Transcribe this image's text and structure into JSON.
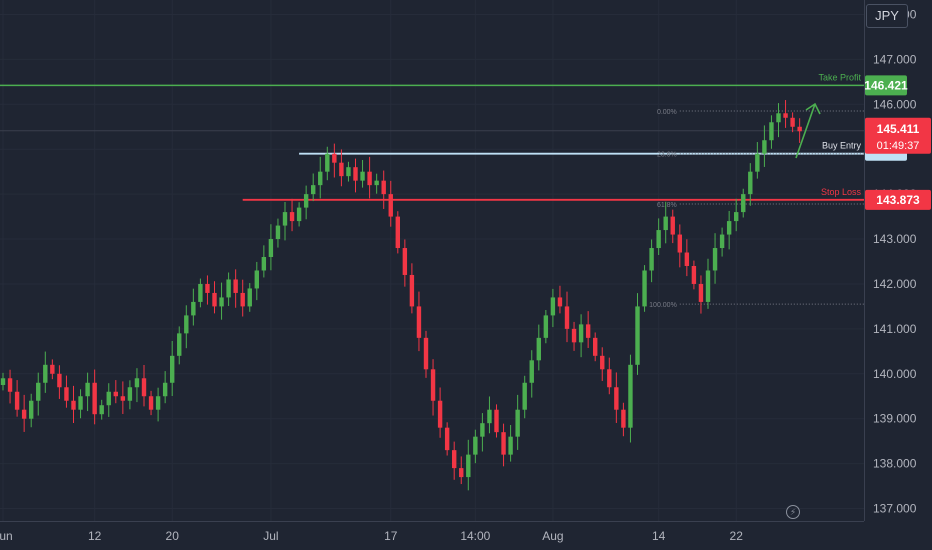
{
  "currency": "JPY",
  "chart_data": {
    "type": "candlestick",
    "y_axis": {
      "ticks": [
        "148.000",
        "147.000",
        "146.000",
        "145.000",
        "144.000",
        "143.000",
        "142.000",
        "141.000",
        "140.000",
        "139.000",
        "138.000",
        "137.000"
      ],
      "tick_values": [
        148,
        147,
        146,
        145,
        144,
        143,
        142,
        141,
        140,
        139,
        138,
        137
      ],
      "range": [
        136.7,
        148.3
      ]
    },
    "x_axis": {
      "ticks": [
        "Jun",
        "12",
        "20",
        "Jul",
        "17",
        "14:00",
        "Aug",
        "14",
        "22"
      ],
      "tick_index": [
        0,
        13,
        24,
        38,
        55,
        67,
        78,
        93,
        104
      ]
    },
    "levels": {
      "take_profit": {
        "label": "Take Profit",
        "value": 146.421,
        "value_text": "146.421",
        "color": "#4caf50"
      },
      "buy_entry": {
        "label": "Buy Entry",
        "value": 144.9,
        "color": "#bfe1f5"
      },
      "stop_loss": {
        "label": "Stop Loss",
        "value": 143.873,
        "value_text": "143.873",
        "color": "#f23645"
      }
    },
    "current_price": {
      "value": 145.411,
      "value_text": "145.411",
      "countdown": "01:49:37",
      "color": "#f23645"
    },
    "fib_levels": [
      {
        "label": "0.00%",
        "value": 145.85
      },
      {
        "label": "23.6%",
        "value": 144.9
      },
      {
        "label": "61.8%",
        "value": 143.78
      },
      {
        "label": "100.00%",
        "value": 141.55
      }
    ],
    "candle_colors": {
      "up": "#4caf50",
      "down": "#f23645"
    },
    "closes": [
      139.9,
      139.6,
      139.2,
      139.0,
      139.4,
      139.8,
      140.2,
      140.0,
      139.7,
      139.4,
      139.2,
      139.5,
      139.8,
      139.1,
      139.3,
      139.6,
      139.5,
      139.4,
      139.7,
      139.9,
      139.5,
      139.2,
      139.5,
      139.8,
      140.4,
      140.9,
      141.3,
      141.6,
      142.0,
      141.8,
      141.5,
      141.7,
      142.1,
      141.8,
      141.5,
      141.9,
      142.3,
      142.6,
      143.0,
      143.3,
      143.6,
      143.4,
      143.7,
      144.0,
      144.2,
      144.5,
      144.9,
      144.7,
      144.4,
      144.6,
      144.3,
      144.5,
      144.2,
      144.3,
      144.0,
      143.5,
      142.8,
      142.2,
      141.5,
      140.8,
      140.1,
      139.4,
      138.8,
      138.3,
      137.9,
      137.7,
      138.2,
      138.6,
      138.9,
      139.2,
      138.7,
      138.2,
      138.6,
      139.2,
      139.8,
      140.3,
      140.8,
      141.3,
      141.7,
      141.5,
      141.0,
      140.7,
      141.1,
      140.8,
      140.4,
      140.1,
      139.7,
      139.2,
      138.8,
      140.2,
      141.5,
      142.3,
      142.8,
      143.2,
      143.5,
      143.1,
      142.7,
      142.4,
      142.0,
      141.6,
      142.3,
      142.8,
      143.1,
      143.4,
      143.6,
      144.0,
      144.5,
      144.9,
      145.2,
      145.6,
      145.8,
      145.7,
      145.5,
      145.4
    ]
  }
}
